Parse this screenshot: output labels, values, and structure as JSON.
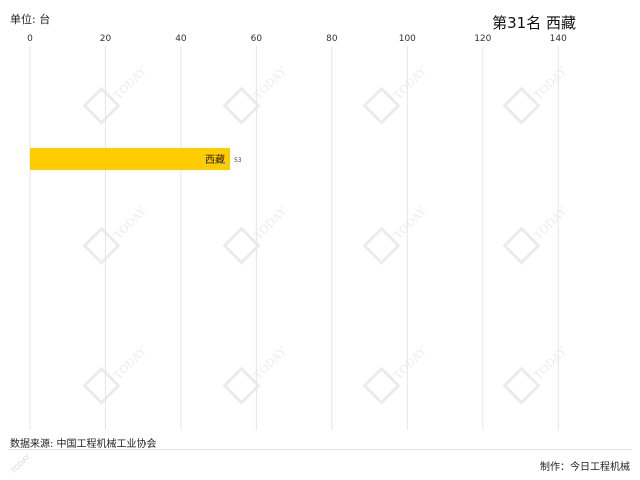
{
  "header": {
    "unit_label": "单位: 台",
    "title": "第31名 西藏"
  },
  "footer": {
    "source": "数据来源: 中国工程机械工业协会",
    "producer": "制作：今日工程机械"
  },
  "watermark": {
    "text": "TODAY"
  },
  "chart_data": {
    "type": "bar",
    "orientation": "horizontal",
    "title": "第31名 西藏",
    "xlabel": "",
    "ylabel": "",
    "xlim": [
      0,
      150
    ],
    "ticks": [
      0,
      20,
      40,
      60,
      80,
      100,
      120,
      140
    ],
    "tick_labels": [
      "0",
      "20",
      "40",
      "60",
      "80",
      "100",
      "120",
      "140"
    ],
    "axis_position": "top",
    "grid": true,
    "categories": [
      "西藏"
    ],
    "values": [
      53
    ],
    "value_labels": [
      "53"
    ],
    "bar_color": "#FFCC00"
  }
}
